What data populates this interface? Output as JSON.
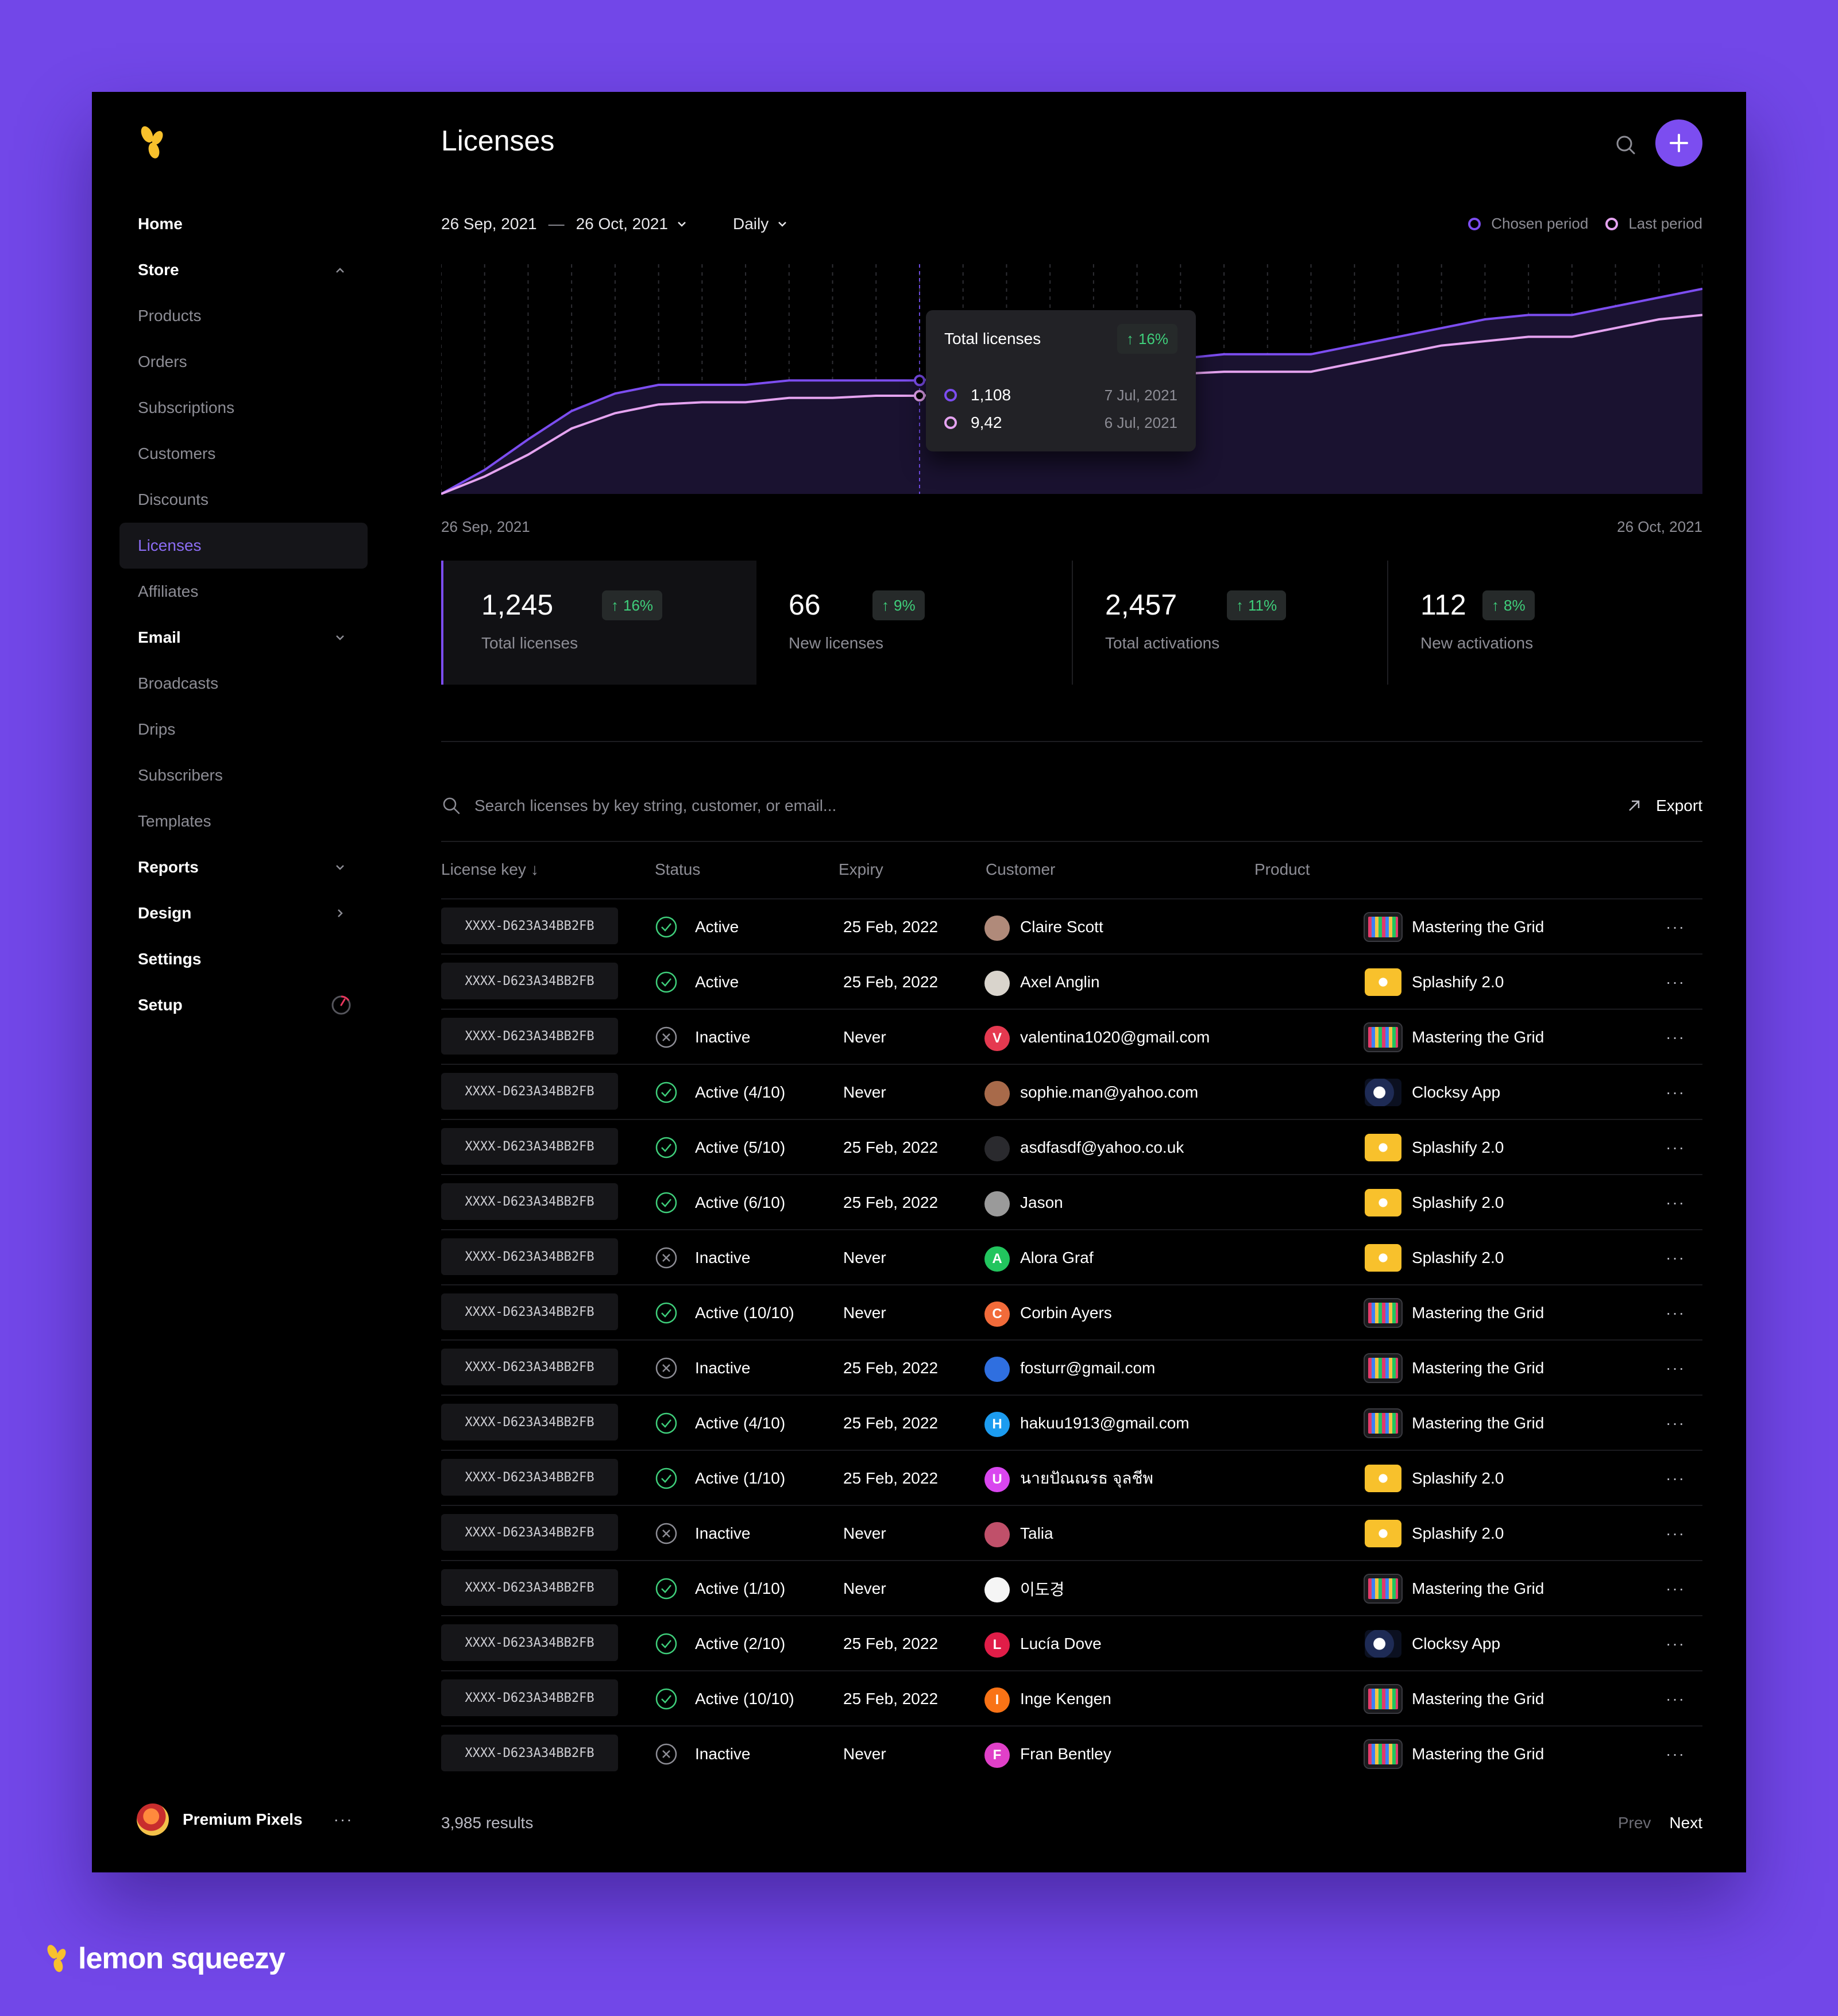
{
  "app": {
    "page_title": "Licenses",
    "brand": "lemon squeezy"
  },
  "colors": {
    "accent": "#7c4df0",
    "chosen": "#7c4df0",
    "last": "#e5a3f0",
    "positive": "#3fcf7b"
  },
  "sidebar": {
    "items": [
      {
        "label": "Home",
        "type": "top"
      },
      {
        "label": "Store",
        "type": "top",
        "chevron": "up"
      },
      {
        "label": "Products",
        "type": "sub"
      },
      {
        "label": "Orders",
        "type": "sub"
      },
      {
        "label": "Subscriptions",
        "type": "sub"
      },
      {
        "label": "Customers",
        "type": "sub"
      },
      {
        "label": "Discounts",
        "type": "sub"
      },
      {
        "label": "Licenses",
        "type": "sub",
        "active": true
      },
      {
        "label": "Affiliates",
        "type": "sub"
      },
      {
        "label": "Email",
        "type": "top",
        "chevron": "down"
      },
      {
        "label": "Broadcasts",
        "type": "sub"
      },
      {
        "label": "Drips",
        "type": "sub"
      },
      {
        "label": "Subscribers",
        "type": "sub"
      },
      {
        "label": "Templates",
        "type": "sub"
      },
      {
        "label": "Reports",
        "type": "top",
        "chevron": "down"
      },
      {
        "label": "Design",
        "type": "top",
        "chevron": "right"
      },
      {
        "label": "Settings",
        "type": "top"
      },
      {
        "label": "Setup",
        "type": "top",
        "setup": true
      }
    ],
    "profile": {
      "name": "Premium Pixels",
      "more": "···"
    }
  },
  "filters": {
    "date_start": "26 Sep, 2021",
    "date_sep": "—",
    "date_end": "26 Oct, 2021",
    "granularity": "Daily",
    "legend_chosen": "Chosen period",
    "legend_last": "Last period"
  },
  "chart_data": {
    "type": "area",
    "x_start": "26 Sep, 2021",
    "x_end": "26 Oct, 2021",
    "series": [
      {
        "values": [
          0,
          110,
          250,
          380,
          460,
          500,
          500,
          500,
          520,
          520,
          520,
          520,
          540,
          540,
          560,
          580,
          620,
          620,
          640,
          640,
          640,
          680,
          720,
          760,
          800,
          820,
          820,
          860,
          900,
          940
        ]
      },
      {
        "values": [
          0,
          80,
          180,
          300,
          370,
          410,
          420,
          420,
          440,
          440,
          450,
          450,
          460,
          460,
          490,
          520,
          550,
          550,
          560,
          560,
          560,
          600,
          640,
          680,
          700,
          720,
          720,
          760,
          800,
          820
        ]
      }
    ],
    "highlight_index": 11,
    "ylim": [
      0,
      1000
    ],
    "tooltip": {
      "title": "Total licenses",
      "change": "16%",
      "rows": [
        {
          "value": "1,108",
          "date": "7 Jul, 2021",
          "series": "chosen"
        },
        {
          "value": "9,42",
          "date": "6 Jul, 2021",
          "series": "last"
        }
      ]
    }
  },
  "stats": [
    {
      "value": "1,245",
      "change": "16%",
      "label": "Total licenses"
    },
    {
      "value": "66",
      "change": "9%",
      "label": "New licenses"
    },
    {
      "value": "2,457",
      "change": "11%",
      "label": "Total activations"
    },
    {
      "value": "112",
      "change": "8%",
      "label": "New activations"
    }
  ],
  "search": {
    "placeholder": "Search licenses by key string, customer, or email...",
    "export": "Export"
  },
  "table": {
    "headers": {
      "key": "License key",
      "status": "Status",
      "expiry": "Expiry",
      "customer": "Customer",
      "product": "Product"
    },
    "rows": [
      {
        "key": "XXXX-D623A34BB2FB",
        "active": true,
        "status": "Active",
        "expiry": "25 Feb, 2022",
        "customer": "Claire Scott",
        "initial": "",
        "avatar": "#b08a7a",
        "product": "Mastering the Grid",
        "pkind": "grid"
      },
      {
        "key": "XXXX-D623A34BB2FB",
        "active": true,
        "status": "Active",
        "expiry": "25 Feb, 2022",
        "customer": "Axel Anglin",
        "initial": "",
        "avatar": "#d9d4cc",
        "product": "Splashify 2.0",
        "pkind": "splash"
      },
      {
        "key": "XXXX-D623A34BB2FB",
        "active": false,
        "status": "Inactive",
        "expiry": "Never",
        "customer": "valentina1020@gmail.com",
        "initial": "V",
        "avatar": "#e53950",
        "product": "Mastering the Grid",
        "pkind": "grid"
      },
      {
        "key": "XXXX-D623A34BB2FB",
        "active": true,
        "status": "Active (4/10)",
        "expiry": "Never",
        "customer": "sophie.man@yahoo.com",
        "initial": "",
        "avatar": "#a86a4a",
        "product": "Clocksy App",
        "pkind": "clock"
      },
      {
        "key": "XXXX-D623A34BB2FB",
        "active": true,
        "status": "Active (5/10)",
        "expiry": "25 Feb, 2022",
        "customer": "asdfasdf@yahoo.co.uk",
        "initial": "",
        "avatar": "#2a2a2e",
        "product": "Splashify 2.0",
        "pkind": "splash"
      },
      {
        "key": "XXXX-D623A34BB2FB",
        "active": true,
        "status": "Active (6/10)",
        "expiry": "25 Feb, 2022",
        "customer": "Jason",
        "initial": "",
        "avatar": "#9a9a9a",
        "product": "Splashify 2.0",
        "pkind": "splash"
      },
      {
        "key": "XXXX-D623A34BB2FB",
        "active": false,
        "status": "Inactive",
        "expiry": "Never",
        "customer": "Alora Graf",
        "initial": "A",
        "avatar": "#22c55e",
        "product": "Splashify 2.0",
        "pkind": "splash"
      },
      {
        "key": "XXXX-D623A34BB2FB",
        "active": true,
        "status": "Active (10/10)",
        "expiry": "Never",
        "customer": "Corbin Ayers",
        "initial": "C",
        "avatar": "#f26b3a",
        "product": "Mastering the Grid",
        "pkind": "grid"
      },
      {
        "key": "XXXX-D623A34BB2FB",
        "active": false,
        "status": "Inactive",
        "expiry": "25 Feb, 2022",
        "customer": "fosturr@gmail.com",
        "initial": "",
        "avatar": "#2f6fe0",
        "product": "Mastering the Grid",
        "pkind": "grid"
      },
      {
        "key": "XXXX-D623A34BB2FB",
        "active": true,
        "status": "Active (4/10)",
        "expiry": "25 Feb, 2022",
        "customer": "hakuu1913@gmail.com",
        "initial": "H",
        "avatar": "#1c9cf0",
        "product": "Mastering the Grid",
        "pkind": "grid"
      },
      {
        "key": "XXXX-D623A34BB2FB",
        "active": true,
        "status": "Active (1/10)",
        "expiry": "25 Feb, 2022",
        "customer": "นายปัณณรธ จุลชีพ",
        "initial": "U",
        "avatar": "#d946ef",
        "product": "Splashify 2.0",
        "pkind": "splash"
      },
      {
        "key": "XXXX-D623A34BB2FB",
        "active": false,
        "status": "Inactive",
        "expiry": "Never",
        "customer": "Talia",
        "initial": "",
        "avatar": "#c0506a",
        "product": "Splashify 2.0",
        "pkind": "splash"
      },
      {
        "key": "XXXX-D623A34BB2FB",
        "active": true,
        "status": "Active (1/10)",
        "expiry": "Never",
        "customer": "이도경",
        "initial": "",
        "avatar": "#f5f5f5",
        "product": "Mastering the Grid",
        "pkind": "grid"
      },
      {
        "key": "XXXX-D623A34BB2FB",
        "active": true,
        "status": "Active (2/10)",
        "expiry": "25 Feb, 2022",
        "customer": "Lucía Dove",
        "initial": "L",
        "avatar": "#e11d48",
        "product": "Clocksy App",
        "pkind": "clock"
      },
      {
        "key": "XXXX-D623A34BB2FB",
        "active": true,
        "status": "Active (10/10)",
        "expiry": "25 Feb, 2022",
        "customer": "Inge Kengen",
        "initial": "I",
        "avatar": "#f97316",
        "product": "Mastering the Grid",
        "pkind": "grid"
      },
      {
        "key": "XXXX-D623A34BB2FB",
        "active": false,
        "status": "Inactive",
        "expiry": "Never",
        "customer": "Fran Bentley",
        "initial": "F",
        "avatar": "#e040c8",
        "product": "Mastering the Grid",
        "pkind": "grid"
      }
    ]
  },
  "footer": {
    "results": "3,985 results",
    "prev": "Prev",
    "next": "Next"
  }
}
